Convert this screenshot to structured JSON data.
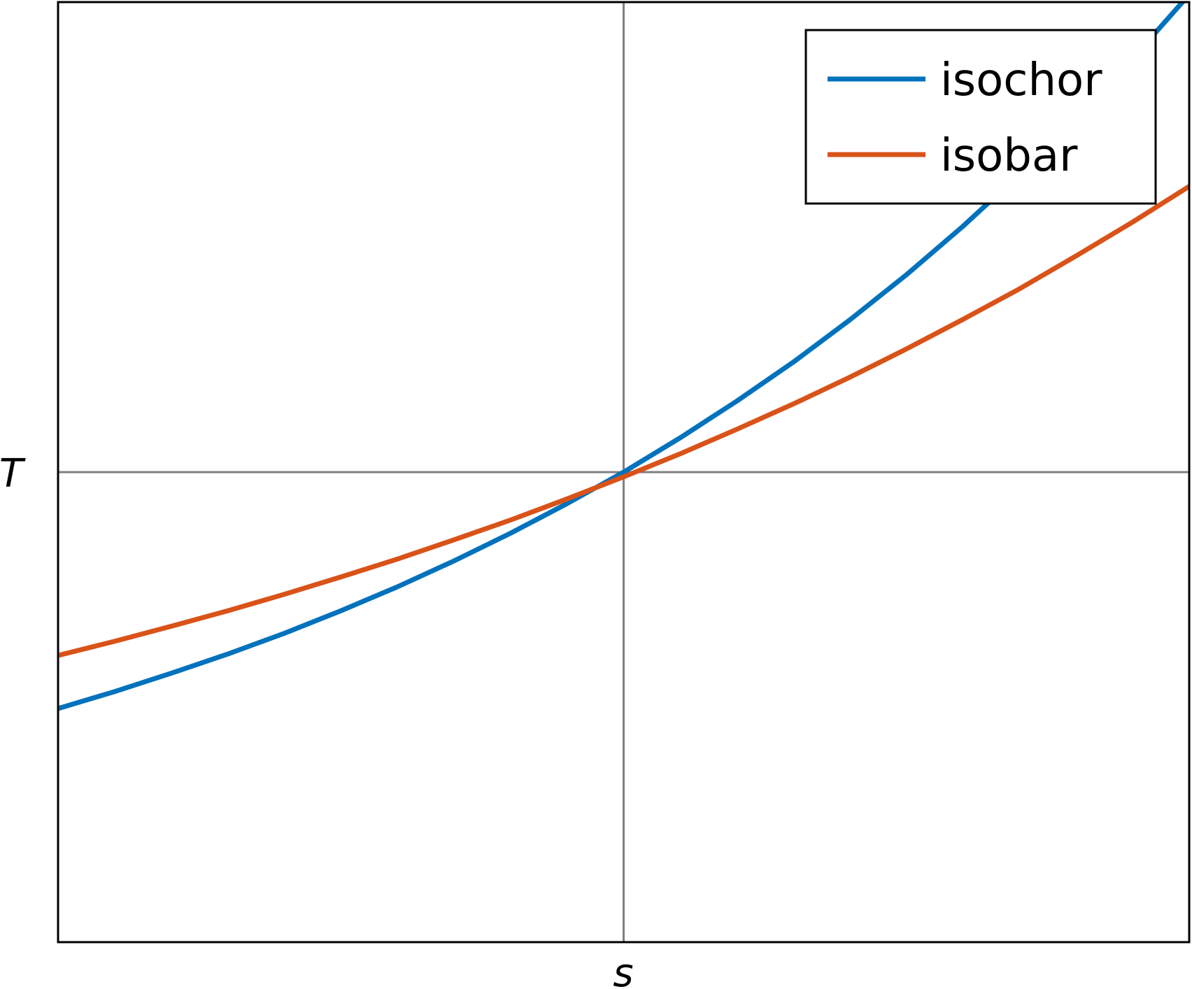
{
  "chart_data": {
    "type": "line",
    "xlabel": "s",
    "ylabel": "T",
    "xlim": [
      -1,
      1
    ],
    "ylim": [
      0,
      2
    ],
    "grid": false,
    "reference_lines": {
      "x": 0,
      "y": 1
    },
    "legend": {
      "position": "top-right"
    },
    "series": [
      {
        "name": "isochor",
        "color": "#0072bd",
        "x": [
          -1.0,
          -0.9,
          -0.8,
          -0.7,
          -0.6,
          -0.5,
          -0.4,
          -0.3,
          -0.2,
          -0.1,
          0.0,
          0.1,
          0.2,
          0.3,
          0.4,
          0.5,
          0.6,
          0.7,
          0.8,
          0.9,
          1.0
        ],
        "y": [
          0.497,
          0.533,
          0.572,
          0.613,
          0.657,
          0.705,
          0.756,
          0.811,
          0.87,
          0.933,
          1.0,
          1.073,
          1.151,
          1.234,
          1.324,
          1.42,
          1.523,
          1.634,
          1.752,
          1.88,
          2.016
        ]
      },
      {
        "name": "isobar",
        "color": "#d95319",
        "x": [
          -1.0,
          -0.9,
          -0.8,
          -0.7,
          -0.6,
          -0.5,
          -0.4,
          -0.3,
          -0.2,
          -0.1,
          0.0,
          0.1,
          0.2,
          0.3,
          0.4,
          0.5,
          0.6,
          0.7,
          0.8,
          0.9,
          1.0
        ],
        "y": [
          0.61,
          0.64,
          0.672,
          0.705,
          0.74,
          0.777,
          0.815,
          0.856,
          0.898,
          0.943,
          0.99,
          1.039,
          1.091,
          1.145,
          1.202,
          1.262,
          1.325,
          1.39,
          1.46,
          1.532,
          1.608
        ]
      }
    ]
  }
}
